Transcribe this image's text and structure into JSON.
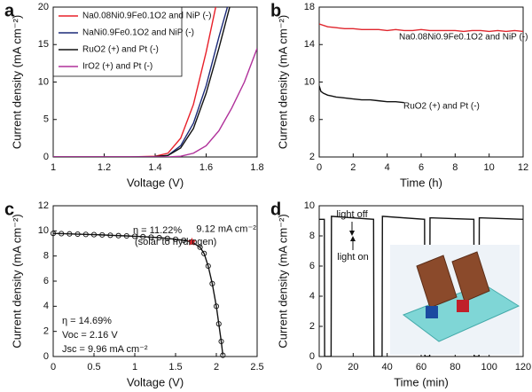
{
  "chart_data": [
    {
      "type": "line",
      "panel_label": "a",
      "xlabel": "Voltage (V)",
      "ylabel": "Current density (mA cm⁻²)",
      "xlim": [
        1,
        1.8
      ],
      "xticks": [
        1,
        1.2,
        1.4,
        1.6,
        1.8
      ],
      "ylim": [
        0,
        20
      ],
      "yticks": [
        0,
        5,
        10,
        15,
        20
      ],
      "legend": "upper left",
      "x": [
        1.0,
        1.1,
        1.2,
        1.3,
        1.4,
        1.45,
        1.5,
        1.55,
        1.6,
        1.65,
        1.7,
        1.75,
        1.8
      ],
      "series": [
        {
          "name": "Na0.08Ni0.9Fe0.1O2 and NiP (-)",
          "color": "#e8202a",
          "values": [
            0,
            0,
            0,
            0,
            0.1,
            0.5,
            2.5,
            7,
            14,
            22,
            null,
            null,
            null
          ]
        },
        {
          "name": "NaNi0.9Fe0.1O2 and NiP (-)",
          "color": "#1c2a78",
          "values": [
            0,
            0,
            0,
            0,
            0.05,
            0.2,
            1.5,
            4.5,
            9.5,
            16,
            22,
            null,
            null
          ]
        },
        {
          "name": "RuO2 (+) and Pt (-)",
          "color": "#111111",
          "values": [
            0,
            0,
            0,
            0,
            0.05,
            0.2,
            1.2,
            3.8,
            8.5,
            14.5,
            21,
            null,
            null
          ]
        },
        {
          "name": "IrO2 (+) and Pt (-)",
          "color": "#b0309a",
          "values": [
            0,
            0,
            0,
            0,
            0,
            0,
            0.1,
            0.5,
            1.5,
            3.5,
            6.5,
            10,
            14.5
          ]
        }
      ]
    },
    {
      "type": "line",
      "panel_label": "b",
      "xlabel": "Time (h)",
      "ylabel": "Current density (mA cm⁻²)",
      "xlim": [
        0,
        12
      ],
      "xticks": [
        0,
        2,
        4,
        6,
        8,
        10,
        12
      ],
      "ylim": [
        2,
        18
      ],
      "yticks": [
        2,
        6,
        10,
        14,
        18
      ],
      "legend": "inline",
      "series": [
        {
          "name": "Na0.08Ni0.9Fe0.1O2 and NiP (-)",
          "color": "#e0262d",
          "x": [
            0,
            0.5,
            1,
            1.5,
            2,
            2.5,
            3,
            3.5,
            4,
            4.5,
            5,
            5.5,
            6,
            6.5,
            7,
            7.5,
            8,
            8.5,
            9,
            9.5,
            10,
            10.5,
            11,
            11.5,
            12
          ],
          "values": [
            16.2,
            15.9,
            15.8,
            15.7,
            15.7,
            15.6,
            15.6,
            15.6,
            15.5,
            15.6,
            15.5,
            15.5,
            15.6,
            15.5,
            15.5,
            15.5,
            15.5,
            15.4,
            15.5,
            15.5,
            15.4,
            15.5,
            15.4,
            15.5,
            15.4
          ]
        },
        {
          "name": "RuO2 (+) and Pt (-)",
          "color": "#111111",
          "x": [
            0,
            0.1,
            0.25,
            0.5,
            0.75,
            1,
            1.5,
            2,
            2.5,
            3,
            3.5,
            4,
            4.5,
            5
          ],
          "values": [
            9.6,
            9.0,
            8.8,
            8.6,
            8.5,
            8.4,
            8.3,
            8.2,
            8.1,
            8.1,
            8.0,
            7.9,
            7.9,
            7.8
          ]
        }
      ]
    },
    {
      "type": "line",
      "panel_label": "c",
      "xlabel": "Voltage (V)",
      "ylabel": "Current density (mA cm⁻²)",
      "xlim": [
        0,
        2.5
      ],
      "xticks": [
        0,
        0.5,
        1,
        1.5,
        2,
        2.5
      ],
      "ylim": [
        0,
        12
      ],
      "yticks": [
        0,
        2,
        4,
        6,
        8,
        10,
        12
      ],
      "markers": "circle",
      "x": [
        0,
        0.1,
        0.2,
        0.3,
        0.4,
        0.5,
        0.6,
        0.7,
        0.8,
        0.9,
        1.0,
        1.1,
        1.2,
        1.3,
        1.4,
        1.5,
        1.6,
        1.7,
        1.8,
        1.85,
        1.9,
        1.95,
        2.0,
        2.03,
        2.06,
        2.08
      ],
      "series": [
        {
          "color": "#111111",
          "values": [
            9.8,
            9.78,
            9.76,
            9.74,
            9.72,
            9.7,
            9.68,
            9.65,
            9.62,
            9.6,
            9.57,
            9.54,
            9.5,
            9.46,
            9.4,
            9.33,
            9.25,
            9.12,
            8.7,
            8.2,
            7.2,
            5.8,
            4.0,
            2.6,
            1.2,
            0.1
          ]
        }
      ],
      "highlight_point": {
        "x": 1.7,
        "y": 9.12,
        "label": "9.12 mA cm⁻²",
        "color": "#e0262d"
      },
      "annotations": [
        "η = 11.22%",
        "(solar to hydrogen)",
        "η = 14.69%",
        "Voc = 2.16 V",
        "Jsc = 9.96 mA cm⁻²"
      ]
    },
    {
      "type": "line",
      "panel_label": "d",
      "xlabel": "Time (min)",
      "ylabel": "Current density (mA cm⁻²)",
      "xlim": [
        0,
        120
      ],
      "xticks": [
        0,
        20,
        40,
        60,
        80,
        100,
        120
      ],
      "ylim": [
        0,
        10
      ],
      "yticks": [
        0,
        2,
        4,
        6,
        8,
        10
      ],
      "x": [
        0,
        3,
        3.2,
        7,
        7.2,
        32,
        32.2,
        37,
        37.2,
        62,
        62.2,
        65,
        65.2,
        91,
        91.2,
        94,
        94.2,
        120
      ],
      "series": [
        {
          "color": "#111111",
          "values": [
            9.1,
            9.1,
            0,
            0,
            9.3,
            9.1,
            0,
            0,
            9.3,
            9.1,
            0,
            0,
            9.2,
            9.1,
            0,
            0,
            9.2,
            9.1
          ]
        }
      ],
      "annotations": [
        "light off",
        "light on"
      ]
    }
  ]
}
